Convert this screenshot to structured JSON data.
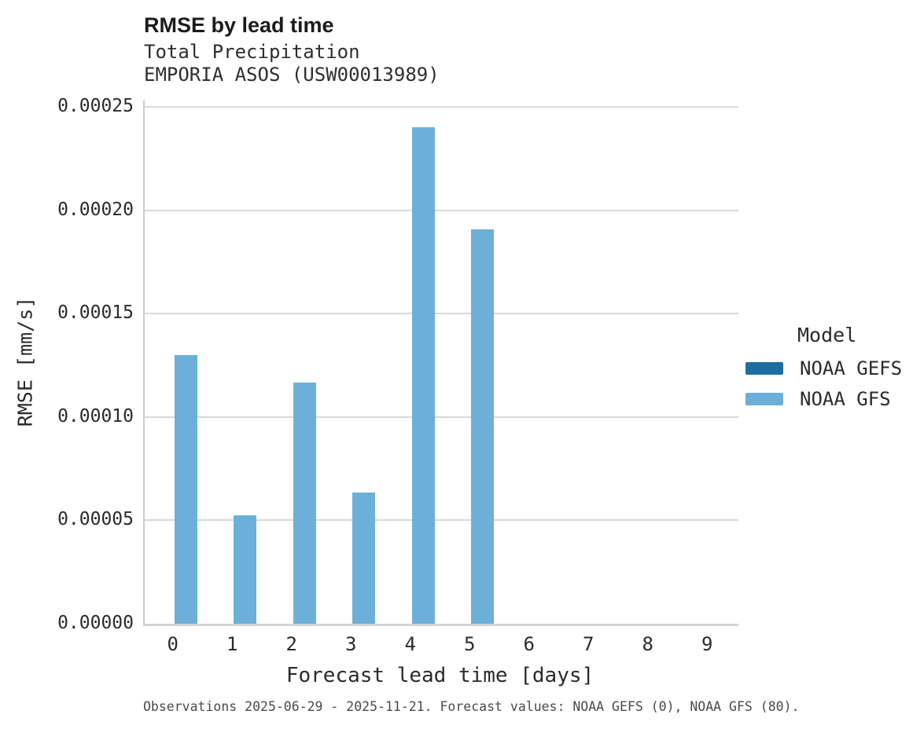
{
  "chart_data": {
    "type": "bar",
    "title": "RMSE by lead time",
    "subtitle_line1": "Total Precipitation",
    "subtitle_line2": "EMPORIA ASOS (USW00013989)",
    "xlabel": "Forecast lead time [days]",
    "ylabel": "RMSE [mm/s]",
    "categories": [
      "0",
      "1",
      "2",
      "3",
      "4",
      "5",
      "6",
      "7",
      "8",
      "9"
    ],
    "series": [
      {
        "name": "NOAA GEFS",
        "color": "#1e6d9f",
        "values": [
          0,
          0,
          0,
          0,
          0,
          0,
          0,
          0,
          0,
          0
        ]
      },
      {
        "name": "NOAA GFS",
        "color": "#6cb0d9",
        "values": [
          0.00013,
          5.26e-05,
          0.0001166,
          6.36e-05,
          0.0002401,
          0.0001906,
          0,
          0,
          0,
          0
        ]
      }
    ],
    "ylim": [
      0,
      0.000253
    ],
    "yticks": [
      {
        "value": 0.0,
        "label": "0.00000"
      },
      {
        "value": 5e-05,
        "label": "0.00005"
      },
      {
        "value": 0.0001,
        "label": "0.00010"
      },
      {
        "value": 0.00015,
        "label": "0.00015"
      },
      {
        "value": 0.0002,
        "label": "0.00020"
      },
      {
        "value": 0.00025,
        "label": "0.00025"
      }
    ],
    "grid": "horizontal",
    "legend_title": "Model",
    "legend_position": "right",
    "caption": "Observations 2025-06-29 - 2025-11-21. Forecast values: NOAA GEFS (0), NOAA GFS (80)."
  },
  "colors": {
    "gridline": "#d9d9d9",
    "spine": "#cbcbcb",
    "text": "#2b2b2b",
    "caption_text": "#4a4a4a"
  }
}
